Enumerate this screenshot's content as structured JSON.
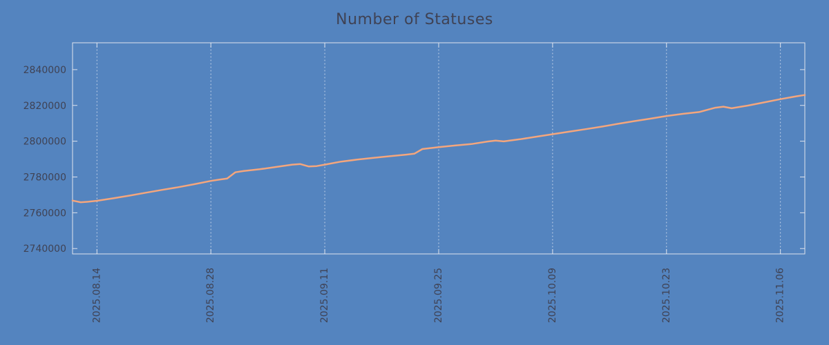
{
  "colors": {
    "background": "#5484bf",
    "line": "#f4a67d",
    "text": "#3f4254",
    "axis": "#dfe4ee",
    "grid": "#d9e2f0"
  },
  "chart_data": {
    "type": "line",
    "title": "Number of Statuses",
    "xlabel": "",
    "ylabel": "",
    "legend": "none",
    "grid": "vertical-dotted",
    "xlim": [
      "2025-08-11",
      "2025-11-09"
    ],
    "ylim": [
      2737000,
      2855000
    ],
    "y_ticks": [
      2740000,
      2760000,
      2780000,
      2800000,
      2820000,
      2840000
    ],
    "x_tick_labels": [
      "2025.08.14",
      "2025.08.28",
      "2025.09.11",
      "2025.09.25",
      "2025.10.09",
      "2025.10.23",
      "2025.11.06"
    ],
    "x_tick_dates": [
      "2025-08-14",
      "2025-08-28",
      "2025-09-11",
      "2025-09-25",
      "2025-10-09",
      "2025-10-23",
      "2025-11-06"
    ],
    "x": [
      "2025-08-11",
      "2025-08-12",
      "2025-08-13",
      "2025-08-14",
      "2025-08-16",
      "2025-08-18",
      "2025-08-20",
      "2025-08-22",
      "2025-08-24",
      "2025-08-26",
      "2025-08-28",
      "2025-08-29",
      "2025-08-30",
      "2025-08-31",
      "2025-09-01",
      "2025-09-03",
      "2025-09-05",
      "2025-09-07",
      "2025-09-08",
      "2025-09-09",
      "2025-09-10",
      "2025-09-11",
      "2025-09-13",
      "2025-09-15",
      "2025-09-17",
      "2025-09-19",
      "2025-09-21",
      "2025-09-22",
      "2025-09-23",
      "2025-09-25",
      "2025-09-27",
      "2025-09-29",
      "2025-10-01",
      "2025-10-02",
      "2025-10-03",
      "2025-10-05",
      "2025-10-07",
      "2025-10-09",
      "2025-10-11",
      "2025-10-13",
      "2025-10-15",
      "2025-10-17",
      "2025-10-19",
      "2025-10-21",
      "2025-10-23",
      "2025-10-25",
      "2025-10-27",
      "2025-10-29",
      "2025-10-30",
      "2025-10-31",
      "2025-11-02",
      "2025-11-04",
      "2025-11-06",
      "2025-11-08",
      "2025-11-09"
    ],
    "values": [
      2766800,
      2765900,
      2766200,
      2766700,
      2768100,
      2769600,
      2771200,
      2772800,
      2774300,
      2776000,
      2777800,
      2778500,
      2779100,
      2782600,
      2783300,
      2784300,
      2785600,
      2786900,
      2787200,
      2785900,
      2786100,
      2786900,
      2788600,
      2789700,
      2790700,
      2791600,
      2792500,
      2793000,
      2795600,
      2796700,
      2797600,
      2798400,
      2799800,
      2800300,
      2799900,
      2801100,
      2802500,
      2803900,
      2805300,
      2806700,
      2808100,
      2809700,
      2811200,
      2812600,
      2814100,
      2815300,
      2816300,
      2818700,
      2819300,
      2818400,
      2819900,
      2821700,
      2823500,
      2825100,
      2825800
    ]
  }
}
